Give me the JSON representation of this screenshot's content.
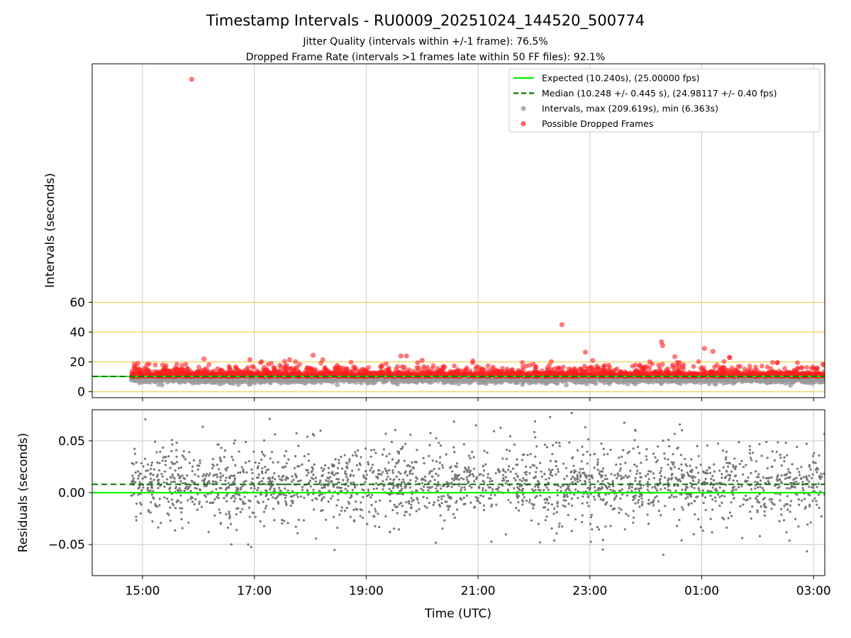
{
  "chart_data": {
    "title": "Timestamp Intervals - RU0009_20251024_144520_500774",
    "subtitles": [
      "Jitter Quality (intervals within +/-1 frame): 76.5%",
      "Dropped Frame Rate (intervals >1 frames late within 50 FF files): 92.1%"
    ],
    "x_axis": {
      "label": "Time (UTC)",
      "range_hours": [
        14.1,
        27.2
      ],
      "ticks": [
        {
          "t": 15,
          "label": "15:00"
        },
        {
          "t": 17,
          "label": "17:00"
        },
        {
          "t": 19,
          "label": "19:00"
        },
        {
          "t": 21,
          "label": "21:00"
        },
        {
          "t": 23,
          "label": "23:00"
        },
        {
          "t": 25,
          "label": "01:00"
        },
        {
          "t": 27,
          "label": "03:00"
        }
      ],
      "grid": true
    },
    "top": {
      "type": "scatter",
      "ylabel": "Intervals (seconds)",
      "ylim": [
        -4,
        220
      ],
      "yticks": [
        0,
        20,
        40,
        60
      ],
      "reference_lines": [
        0,
        20,
        40,
        60
      ],
      "expected": 10.24,
      "median": 10.248,
      "dense_range": [
        14.8,
        27.2
      ],
      "dense_count": 1400,
      "outliers": [
        {
          "t": 15.88,
          "v": 209.6
        },
        {
          "t": 22.5,
          "v": 45
        },
        {
          "t": 24.28,
          "v": 33.5
        },
        {
          "t": 24.3,
          "v": 31
        },
        {
          "t": 25.05,
          "v": 29
        },
        {
          "t": 22.92,
          "v": 26.5
        },
        {
          "t": 25.2,
          "v": 27
        },
        {
          "t": 19.62,
          "v": 24
        },
        {
          "t": 19.72,
          "v": 24
        },
        {
          "t": 18.05,
          "v": 24.5
        },
        {
          "t": 25.5,
          "v": 23
        },
        {
          "t": 24.52,
          "v": 23.5
        },
        {
          "t": 16.1,
          "v": 22
        },
        {
          "t": 23.05,
          "v": 21
        },
        {
          "t": 16.92,
          "v": 21.5
        },
        {
          "t": 17.63,
          "v": 21.5
        },
        {
          "t": 20.0,
          "v": 21
        },
        {
          "t": 24.6,
          "v": 19.5
        },
        {
          "t": 24.07,
          "v": 20
        }
      ],
      "legend": {
        "position": "upper right",
        "entries": [
          {
            "label": "Expected (10.240s), (25.00000 fps)",
            "style": "solid-line",
            "color": "#00ee00"
          },
          {
            "label": "Median (10.248 +/- 0.445 s), (24.98117 +/- 0.40 fps)",
            "style": "dashed-line",
            "color": "#007700"
          },
          {
            "label": "Intervals, max (209.619s), min (6.363s)",
            "style": "dot",
            "color": "#9a9a9a"
          },
          {
            "label": "Possible Dropped Frames",
            "style": "dot",
            "color": "#ff4040"
          }
        ]
      }
    },
    "bottom": {
      "type": "scatter",
      "ylabel": "Residuals (seconds)",
      "ylim": [
        -0.08,
        0.08
      ],
      "yticks": [
        {
          "v": 0.05,
          "label": "0.05"
        },
        {
          "v": 0.0,
          "label": "0.00"
        },
        {
          "v": -0.05,
          "label": "−0.05"
        }
      ],
      "expected_residual": 0.0,
      "median_residual": 0.008,
      "point_count": 2200,
      "spread_sd": 0.022
    },
    "colors": {
      "expected": "#00ee00",
      "median": "#007700",
      "intervals": "#9a9a9a",
      "dropped": "#ff2020",
      "residuals": "#777777",
      "refline": "#f5c842",
      "grid": "#c8c8c8"
    }
  }
}
